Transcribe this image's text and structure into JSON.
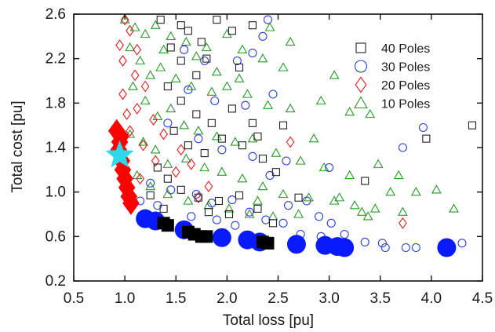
{
  "chart_data": {
    "type": "scatter",
    "title": "",
    "xlabel": "Total loss [pu]",
    "ylabel": "Total cost [pu]",
    "xlim": [
      0.5,
      4.5
    ],
    "ylim": [
      0.2,
      2.6
    ],
    "x_ticks": [
      "0.5",
      "1.0",
      "1.5",
      "2.0",
      "2.5",
      "3.0",
      "3.5",
      "4.0",
      "4.5"
    ],
    "y_ticks": [
      "0.2",
      "0.6",
      "1.0",
      "1.4",
      "1.8",
      "2.2",
      "2.6"
    ],
    "grid": false,
    "legend_position": "top-right",
    "series": [
      {
        "name": "40 Poles",
        "marker": "square",
        "color": "#222222",
        "points": [
          [
            1.35,
            2.55
          ],
          [
            1.55,
            2.5
          ],
          [
            1.62,
            2.45
          ],
          [
            1.75,
            2.35
          ],
          [
            1.9,
            2.55
          ],
          [
            1.45,
            2.3
          ],
          [
            1.55,
            2.18
          ],
          [
            1.7,
            2.05
          ],
          [
            1.8,
            2.2
          ],
          [
            2.05,
            2.45
          ],
          [
            2.25,
            2.5
          ],
          [
            2.12,
            2.12
          ],
          [
            1.42,
            1.95
          ],
          [
            1.55,
            1.82
          ],
          [
            1.7,
            1.7
          ],
          [
            1.85,
            1.62
          ],
          [
            2.05,
            1.75
          ],
          [
            2.25,
            1.62
          ],
          [
            1.48,
            1.55
          ],
          [
            1.62,
            1.42
          ],
          [
            1.78,
            1.35
          ],
          [
            1.95,
            1.48
          ],
          [
            2.15,
            1.42
          ],
          [
            2.35,
            1.3
          ],
          [
            2.48,
            1.18
          ],
          [
            1.32,
            1.22
          ],
          [
            1.42,
            1.12
          ],
          [
            1.55,
            1.02
          ],
          [
            1.72,
            0.95
          ],
          [
            1.92,
            0.92
          ],
          [
            2.12,
            0.97
          ],
          [
            2.3,
            0.85
          ],
          [
            2.45,
            0.72
          ],
          [
            2.02,
            0.8
          ],
          [
            1.82,
            0.82
          ],
          [
            1.38,
            0.85
          ],
          [
            3.35,
            1.1
          ],
          [
            3.95,
            1.48
          ],
          [
            4.4,
            1.6
          ],
          [
            2.55,
            1.6
          ],
          [
            2.7,
            0.95
          ],
          [
            2.3,
            1.5
          ],
          [
            1.25,
            0.97
          ]
        ]
      },
      {
        "name": "30 Poles",
        "marker": "circle",
        "color": "#2b3fd6",
        "points": [
          [
            2.4,
            2.55
          ],
          [
            2.35,
            2.4
          ],
          [
            2.25,
            2.25
          ],
          [
            2.1,
            2.18
          ],
          [
            1.78,
            2.18
          ],
          [
            1.58,
            2.28
          ],
          [
            1.62,
            1.92
          ],
          [
            1.88,
            1.82
          ],
          [
            2.18,
            1.78
          ],
          [
            2.45,
            1.88
          ],
          [
            1.42,
            1.62
          ],
          [
            1.72,
            1.48
          ],
          [
            1.95,
            1.38
          ],
          [
            2.25,
            1.32
          ],
          [
            2.42,
            1.15
          ],
          [
            1.25,
            1.08
          ],
          [
            1.45,
            1.02
          ],
          [
            1.7,
            0.98
          ],
          [
            1.85,
            0.9
          ],
          [
            2.05,
            0.93
          ],
          [
            2.22,
            0.82
          ],
          [
            2.38,
            0.75
          ],
          [
            2.55,
            0.72
          ],
          [
            2.72,
            0.62
          ],
          [
            2.92,
            0.6
          ],
          [
            1.65,
            0.78
          ],
          [
            1.9,
            0.75
          ],
          [
            2.08,
            0.7
          ],
          [
            2.6,
            0.88
          ],
          [
            2.9,
            0.78
          ],
          [
            3.15,
            0.62
          ],
          [
            3.35,
            0.55
          ],
          [
            3.55,
            0.5
          ],
          [
            3.75,
            0.5
          ],
          [
            3.85,
            0.5
          ],
          [
            3.92,
            1.58
          ],
          [
            3.72,
            1.4
          ],
          [
            3.0,
            1.22
          ],
          [
            2.58,
            1.28
          ],
          [
            2.78,
            0.92
          ],
          [
            3.02,
            0.72
          ],
          [
            3.52,
            0.54
          ],
          [
            4.3,
            0.54
          ],
          [
            1.15,
            0.92
          ],
          [
            1.32,
            0.88
          ]
        ]
      },
      {
        "name": "20 Poles",
        "marker": "diamond",
        "color": "#e02020",
        "points": [
          [
            1.0,
            2.55
          ],
          [
            1.05,
            2.45
          ],
          [
            0.95,
            2.32
          ],
          [
            1.12,
            2.28
          ],
          [
            0.98,
            2.18
          ],
          [
            1.1,
            2.05
          ],
          [
            1.2,
            1.95
          ],
          [
            0.98,
            1.88
          ],
          [
            1.12,
            1.75
          ],
          [
            1.28,
            1.65
          ],
          [
            1.05,
            1.55
          ],
          [
            1.38,
            1.52
          ],
          [
            1.18,
            1.42
          ],
          [
            1.55,
            1.38
          ],
          [
            1.3,
            1.28
          ],
          [
            1.5,
            1.18
          ],
          [
            1.72,
            0.95
          ],
          [
            1.82,
            1.05
          ],
          [
            1.65,
            1.25
          ],
          [
            2.62,
            1.45
          ],
          [
            3.72,
            0.72
          ],
          [
            1.02,
            1.7
          ],
          [
            1.15,
            1.12
          ]
        ]
      },
      {
        "name": "10 Poles",
        "marker": "triangle",
        "color": "#2a9a2a",
        "points": [
          [
            1.0,
            2.55
          ],
          [
            1.1,
            2.48
          ],
          [
            1.2,
            2.42
          ],
          [
            1.3,
            2.5
          ],
          [
            1.45,
            2.4
          ],
          [
            1.6,
            2.35
          ],
          [
            1.8,
            2.3
          ],
          [
            2.0,
            2.42
          ],
          [
            2.15,
            2.28
          ],
          [
            2.35,
            2.2
          ],
          [
            2.55,
            2.12
          ],
          [
            2.62,
            2.35
          ],
          [
            2.42,
            2.48
          ],
          [
            1.05,
            2.3
          ],
          [
            1.15,
            2.18
          ],
          [
            1.25,
            2.05
          ],
          [
            1.35,
            2.12
          ],
          [
            1.5,
            2.02
          ],
          [
            1.65,
            1.95
          ],
          [
            1.85,
            1.9
          ],
          [
            2.0,
            1.95
          ],
          [
            2.2,
            1.88
          ],
          [
            2.4,
            1.78
          ],
          [
            2.62,
            1.75
          ],
          [
            2.92,
            1.82
          ],
          [
            3.05,
            2.05
          ],
          [
            3.2,
            1.72
          ],
          [
            3.4,
            1.7
          ],
          [
            1.08,
            1.95
          ],
          [
            1.2,
            1.82
          ],
          [
            1.32,
            1.68
          ],
          [
            1.45,
            1.75
          ],
          [
            1.58,
            1.6
          ],
          [
            1.72,
            1.55
          ],
          [
            1.9,
            1.5
          ],
          [
            2.08,
            1.45
          ],
          [
            2.25,
            1.48
          ],
          [
            2.48,
            1.35
          ],
          [
            2.72,
            1.28
          ],
          [
            2.95,
            1.22
          ],
          [
            3.2,
            1.15
          ],
          [
            3.48,
            1.25
          ],
          [
            1.05,
            1.52
          ],
          [
            1.18,
            1.45
          ],
          [
            1.3,
            1.38
          ],
          [
            1.42,
            1.25
          ],
          [
            1.6,
            1.3
          ],
          [
            1.78,
            1.22
          ],
          [
            1.95,
            1.18
          ],
          [
            2.15,
            1.12
          ],
          [
            2.35,
            1.05
          ],
          [
            2.55,
            0.98
          ],
          [
            2.8,
            0.95
          ],
          [
            3.05,
            0.92
          ],
          [
            3.25,
            0.88
          ],
          [
            3.45,
            0.85
          ],
          [
            1.12,
            1.15
          ],
          [
            1.25,
            1.05
          ],
          [
            1.42,
            0.98
          ],
          [
            1.62,
            0.92
          ],
          [
            1.82,
            0.88
          ],
          [
            2.02,
            0.85
          ],
          [
            2.22,
            0.8
          ],
          [
            2.45,
            0.78
          ],
          [
            2.7,
            0.8
          ],
          [
            3.1,
            0.95
          ],
          [
            3.32,
            0.82
          ],
          [
            3.6,
            1.0
          ],
          [
            3.85,
            1.0
          ],
          [
            4.05,
            1.02
          ],
          [
            4.22,
            0.85
          ],
          [
            3.72,
            0.82
          ],
          [
            2.85,
            1.48
          ],
          [
            2.3,
            0.92
          ],
          [
            3.38,
            0.78
          ],
          [
            3.68,
            1.15
          ],
          [
            1.38,
            2.28
          ],
          [
            1.7,
            2.22
          ],
          [
            1.9,
            2.08
          ],
          [
            2.12,
            2.02
          ]
        ]
      }
    ],
    "pareto_series": [
      {
        "marker": "diamond",
        "color": "#ff0000",
        "points": [
          [
            0.92,
            1.55
          ],
          [
            0.95,
            1.45
          ],
          [
            0.94,
            1.38
          ],
          [
            0.97,
            1.28
          ],
          [
            0.98,
            1.2
          ],
          [
            1.0,
            1.12
          ],
          [
            1.02,
            1.04
          ],
          [
            1.04,
            0.96
          ],
          [
            1.06,
            0.9
          ],
          [
            0.96,
            1.5
          ]
        ]
      },
      {
        "marker": "circle",
        "color": "#0a1aff",
        "points": [
          [
            1.2,
            0.76
          ],
          [
            1.3,
            0.74
          ],
          [
            1.58,
            0.66
          ],
          [
            1.95,
            0.59
          ],
          [
            2.2,
            0.57
          ],
          [
            2.32,
            0.55
          ],
          [
            2.68,
            0.53
          ],
          [
            2.96,
            0.52
          ],
          [
            3.08,
            0.51
          ],
          [
            3.15,
            0.5
          ],
          [
            4.15,
            0.5
          ]
        ]
      },
      {
        "marker": "square",
        "color": "#000000",
        "points": [
          [
            1.38,
            0.72
          ],
          [
            1.42,
            0.7
          ],
          [
            1.62,
            0.64
          ],
          [
            1.68,
            0.62
          ],
          [
            1.75,
            0.6
          ],
          [
            1.8,
            0.6
          ],
          [
            2.35,
            0.55
          ],
          [
            2.4,
            0.54
          ]
        ]
      },
      {
        "marker": "star",
        "color": "#2fd8e8",
        "points": [
          [
            0.95,
            1.33
          ]
        ]
      }
    ]
  }
}
